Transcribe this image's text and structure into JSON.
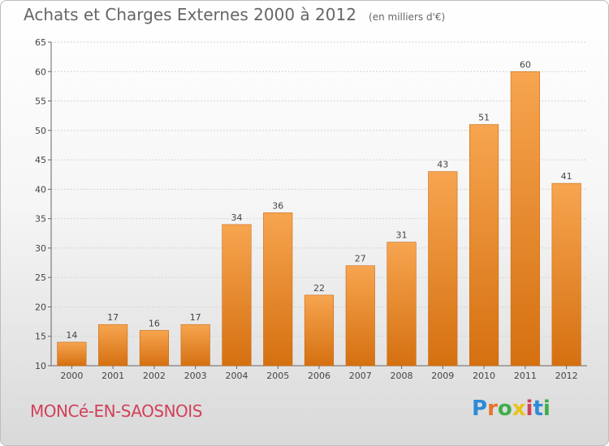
{
  "header": {
    "title": "Achats et Charges Externes 2000 à 2012",
    "unit": "(en milliers d'€)"
  },
  "footer": {
    "commune": "MONCé-EN-SAOSNOIS",
    "logo": "Proxiti"
  },
  "colors": {
    "bar_light": "#f7a550",
    "bar_dark": "#d57010",
    "commune": "#d2405a"
  },
  "chart_data": {
    "type": "bar",
    "categories": [
      "2000",
      "2001",
      "2002",
      "2003",
      "2004",
      "2005",
      "2006",
      "2007",
      "2008",
      "2009",
      "2010",
      "2011",
      "2012"
    ],
    "values": [
      14,
      17,
      16,
      17,
      34,
      36,
      22,
      27,
      31,
      43,
      51,
      60,
      41
    ],
    "ylim": [
      10,
      65
    ],
    "yticks": [
      10,
      15,
      20,
      25,
      30,
      35,
      40,
      45,
      50,
      55,
      60,
      65
    ],
    "grid": true,
    "legend": "none",
    "data_labels": true
  }
}
